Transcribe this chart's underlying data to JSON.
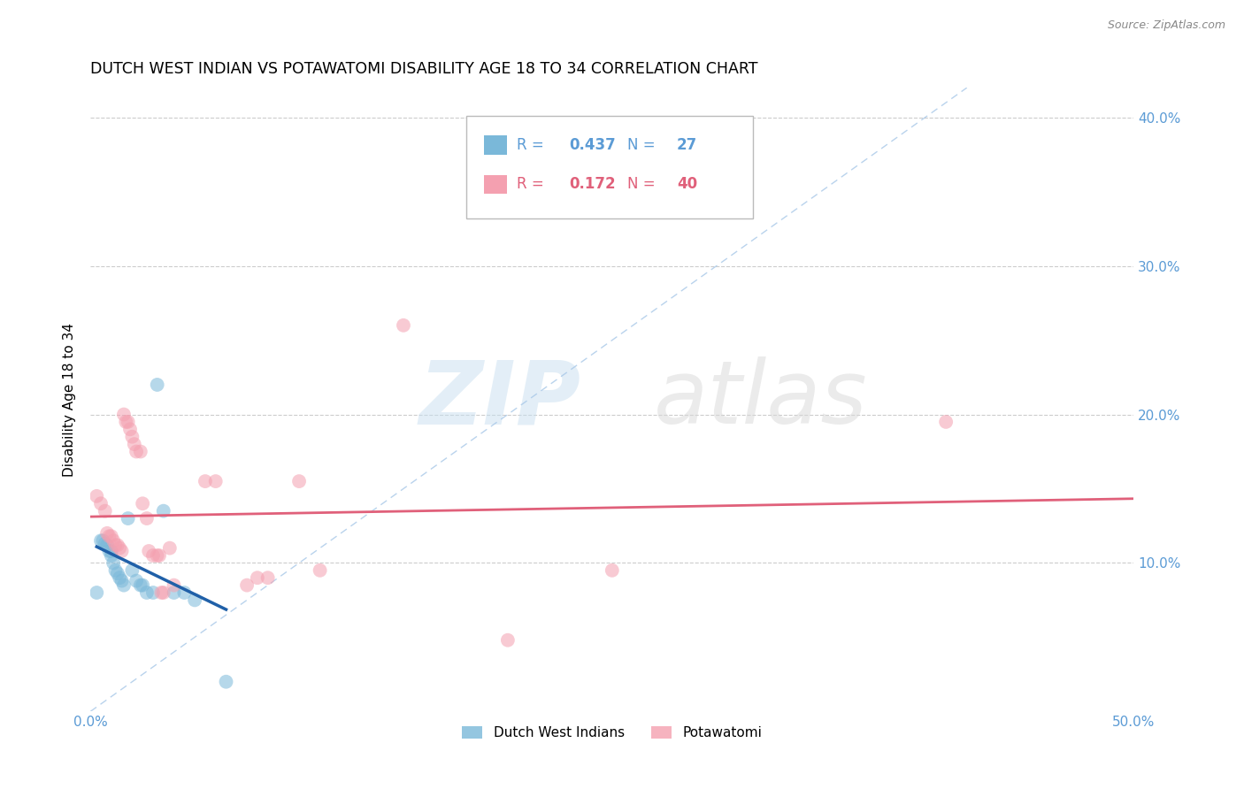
{
  "title": "DUTCH WEST INDIAN VS POTAWATOMI DISABILITY AGE 18 TO 34 CORRELATION CHART",
  "source": "Source: ZipAtlas.com",
  "ylabel": "Disability Age 18 to 34",
  "xlim": [
    0.0,
    0.5
  ],
  "ylim": [
    0.0,
    0.42
  ],
  "legend_labels": [
    "Dutch West Indians",
    "Potawatomi"
  ],
  "blue_color": "#7ab8d9",
  "pink_color": "#f4a0b0",
  "blue_line_color": "#2060a8",
  "pink_line_color": "#e0607a",
  "blue_scatter": [
    [
      0.003,
      0.08
    ],
    [
      0.005,
      0.115
    ],
    [
      0.006,
      0.115
    ],
    [
      0.007,
      0.113
    ],
    [
      0.008,
      0.112
    ],
    [
      0.009,
      0.108
    ],
    [
      0.01,
      0.108
    ],
    [
      0.01,
      0.105
    ],
    [
      0.011,
      0.1
    ],
    [
      0.012,
      0.095
    ],
    [
      0.013,
      0.093
    ],
    [
      0.014,
      0.09
    ],
    [
      0.015,
      0.088
    ],
    [
      0.016,
      0.085
    ],
    [
      0.018,
      0.13
    ],
    [
      0.02,
      0.095
    ],
    [
      0.022,
      0.088
    ],
    [
      0.024,
      0.085
    ],
    [
      0.025,
      0.085
    ],
    [
      0.027,
      0.08
    ],
    [
      0.03,
      0.08
    ],
    [
      0.032,
      0.22
    ],
    [
      0.035,
      0.135
    ],
    [
      0.04,
      0.08
    ],
    [
      0.045,
      0.08
    ],
    [
      0.05,
      0.075
    ],
    [
      0.065,
      0.02
    ]
  ],
  "pink_scatter": [
    [
      0.003,
      0.145
    ],
    [
      0.005,
      0.14
    ],
    [
      0.007,
      0.135
    ],
    [
      0.008,
      0.12
    ],
    [
      0.009,
      0.118
    ],
    [
      0.01,
      0.118
    ],
    [
      0.011,
      0.115
    ],
    [
      0.012,
      0.112
    ],
    [
      0.013,
      0.112
    ],
    [
      0.014,
      0.11
    ],
    [
      0.015,
      0.108
    ],
    [
      0.016,
      0.2
    ],
    [
      0.017,
      0.195
    ],
    [
      0.018,
      0.195
    ],
    [
      0.019,
      0.19
    ],
    [
      0.02,
      0.185
    ],
    [
      0.021,
      0.18
    ],
    [
      0.022,
      0.175
    ],
    [
      0.024,
      0.175
    ],
    [
      0.025,
      0.14
    ],
    [
      0.027,
      0.13
    ],
    [
      0.028,
      0.108
    ],
    [
      0.03,
      0.105
    ],
    [
      0.032,
      0.105
    ],
    [
      0.033,
      0.105
    ],
    [
      0.034,
      0.08
    ],
    [
      0.035,
      0.08
    ],
    [
      0.038,
      0.11
    ],
    [
      0.04,
      0.085
    ],
    [
      0.055,
      0.155
    ],
    [
      0.06,
      0.155
    ],
    [
      0.075,
      0.085
    ],
    [
      0.08,
      0.09
    ],
    [
      0.085,
      0.09
    ],
    [
      0.1,
      0.155
    ],
    [
      0.11,
      0.095
    ],
    [
      0.15,
      0.26
    ],
    [
      0.2,
      0.048
    ],
    [
      0.25,
      0.095
    ],
    [
      0.41,
      0.195
    ]
  ],
  "watermark_zip": "ZIP",
  "watermark_atlas": "atlas",
  "marker_size": 130,
  "grid_color": "#cccccc",
  "tick_color": "#5b9bd5"
}
